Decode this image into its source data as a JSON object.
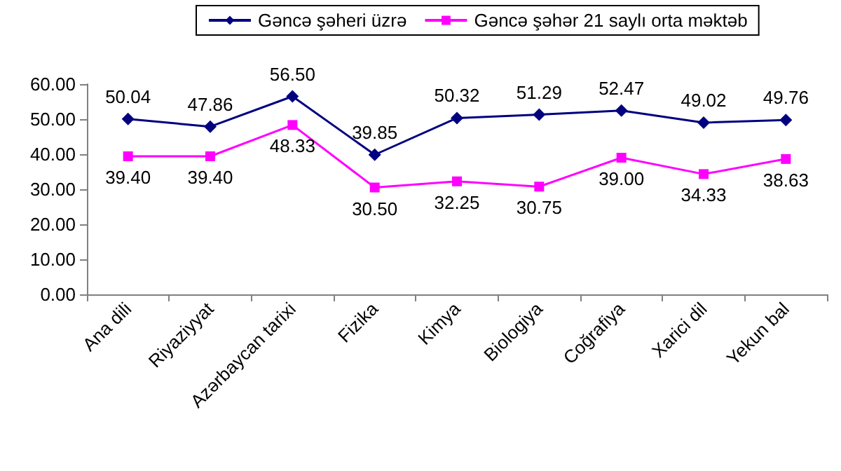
{
  "chart_data": {
    "type": "line",
    "categories": [
      "Ana dili",
      "Riyaziyyat",
      "Azərbaycan tarixi",
      "Fizika",
      "Kimya",
      "Biologiya",
      "Coğrafiya",
      "Xarici dil",
      "Yekun bal"
    ],
    "series": [
      {
        "name": "Gəncə şəheri üzrə",
        "color": "#000080",
        "marker": "diamond",
        "values": [
          50.04,
          47.86,
          56.5,
          39.85,
          50.32,
          51.29,
          52.47,
          49.02,
          49.76
        ],
        "value_labels": [
          "50.04",
          "47.86",
          "56.50",
          "39.85",
          "50.32",
          "51.29",
          "52.47",
          "49.02",
          "49.76"
        ]
      },
      {
        "name": "Gəncə şəhər 21 saylı orta məktəb",
        "color": "#ff00ff",
        "marker": "square",
        "values": [
          39.4,
          39.4,
          48.33,
          30.5,
          32.25,
          30.75,
          39.0,
          34.33,
          38.63
        ],
        "value_labels": [
          "39.40",
          "39.40",
          "48.33",
          "30.50",
          "32.25",
          "30.75",
          "39.00",
          "34.33",
          "38.63"
        ]
      }
    ],
    "ylim": [
      0,
      60
    ],
    "yticks": [
      "0.00",
      "10.00",
      "20.00",
      "30.00",
      "40.00",
      "50.00",
      "60.00"
    ],
    "grid": false,
    "legend": "top"
  }
}
